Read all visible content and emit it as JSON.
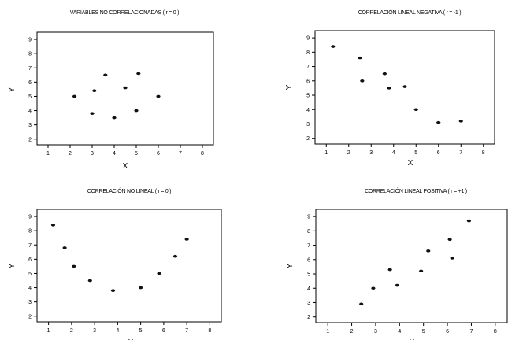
{
  "chart_data": [
    {
      "type": "scatter",
      "title": "VARIABLES NO CORRELACIONADAS ( r = 0 )",
      "xlabel": "X",
      "ylabel": "Y",
      "xlim": [
        0.5,
        8.5
      ],
      "ylim": [
        1.6,
        9.5
      ],
      "xticks": [
        1,
        2,
        3,
        4,
        5,
        6,
        7,
        8
      ],
      "yticks": [
        2,
        3,
        4,
        5,
        6,
        7,
        8,
        9
      ],
      "points": [
        {
          "x": 2.2,
          "y": 5.0
        },
        {
          "x": 3.1,
          "y": 5.4
        },
        {
          "x": 3.0,
          "y": 3.8
        },
        {
          "x": 3.6,
          "y": 6.5
        },
        {
          "x": 4.0,
          "y": 3.5
        },
        {
          "x": 4.5,
          "y": 5.6
        },
        {
          "x": 5.0,
          "y": 4.0
        },
        {
          "x": 5.1,
          "y": 6.6
        },
        {
          "x": 6.0,
          "y": 5.0
        }
      ],
      "grid": false
    },
    {
      "type": "scatter",
      "title": "CORRELACIÓN LINEAL NEGATIVA ( r = -1 )",
      "xlabel": "X",
      "ylabel": "Y",
      "xlim": [
        0.5,
        8.5
      ],
      "ylim": [
        1.6,
        9.5
      ],
      "xticks": [
        1,
        2,
        3,
        4,
        5,
        6,
        7,
        8
      ],
      "yticks": [
        2,
        3,
        4,
        5,
        6,
        7,
        8,
        9
      ],
      "points": [
        {
          "x": 1.3,
          "y": 8.4
        },
        {
          "x": 2.5,
          "y": 7.6
        },
        {
          "x": 2.6,
          "y": 6.0
        },
        {
          "x": 3.6,
          "y": 6.5
        },
        {
          "x": 3.8,
          "y": 5.5
        },
        {
          "x": 4.5,
          "y": 5.6
        },
        {
          "x": 5.0,
          "y": 4.0
        },
        {
          "x": 6.0,
          "y": 3.1
        },
        {
          "x": 7.0,
          "y": 3.2
        }
      ],
      "grid": false
    },
    {
      "type": "scatter",
      "title": "CORRELACIÓN NO LINEAL ( r = 0 )",
      "xlabel": "X",
      "ylabel": "Y",
      "xlim": [
        0.5,
        8.5
      ],
      "ylim": [
        1.6,
        9.5
      ],
      "xticks": [
        1,
        2,
        3,
        4,
        5,
        6,
        7,
        8
      ],
      "yticks": [
        2,
        3,
        4,
        5,
        6,
        7,
        8,
        9
      ],
      "points": [
        {
          "x": 1.2,
          "y": 8.4
        },
        {
          "x": 1.7,
          "y": 6.8
        },
        {
          "x": 2.1,
          "y": 5.5
        },
        {
          "x": 2.8,
          "y": 4.5
        },
        {
          "x": 3.8,
          "y": 3.8
        },
        {
          "x": 5.0,
          "y": 4.0
        },
        {
          "x": 5.8,
          "y": 5.0
        },
        {
          "x": 6.5,
          "y": 6.2
        },
        {
          "x": 7.0,
          "y": 7.4
        }
      ],
      "grid": false
    },
    {
      "type": "scatter",
      "title": "CORRELACIÓN LINEAL POSITIVA ( r = +1 )",
      "xlabel": "X",
      "ylabel": "Y",
      "xlim": [
        0.5,
        8.5
      ],
      "ylim": [
        1.6,
        9.5
      ],
      "xticks": [
        1,
        2,
        3,
        4,
        5,
        6,
        7,
        8
      ],
      "yticks": [
        2,
        3,
        4,
        5,
        6,
        7,
        8,
        9
      ],
      "points": [
        {
          "x": 2.4,
          "y": 2.9
        },
        {
          "x": 2.9,
          "y": 4.0
        },
        {
          "x": 3.6,
          "y": 5.3
        },
        {
          "x": 3.9,
          "y": 4.2
        },
        {
          "x": 4.9,
          "y": 5.2
        },
        {
          "x": 5.2,
          "y": 6.6
        },
        {
          "x": 6.1,
          "y": 7.4
        },
        {
          "x": 6.2,
          "y": 6.1
        },
        {
          "x": 6.9,
          "y": 8.7
        }
      ],
      "grid": false
    }
  ]
}
